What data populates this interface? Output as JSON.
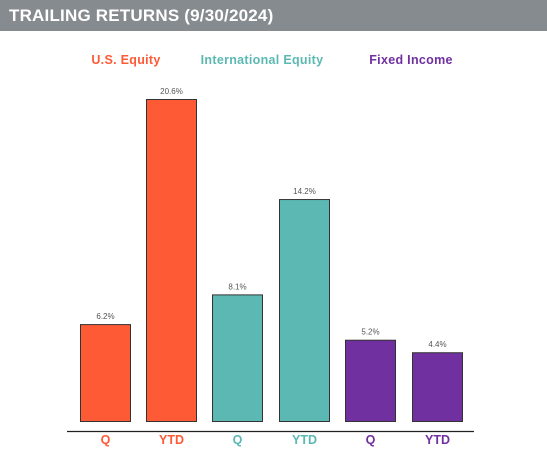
{
  "header": {
    "title": "TRAILING RETURNS (9/30/2024)"
  },
  "colors": {
    "header_bg": "#868b90",
    "us_equity": "#ff5a36",
    "international_equity": "#5bb8b2",
    "fixed_income": "#7030a0"
  },
  "chart_data": {
    "type": "bar",
    "title": "TRAILING RETURNS (9/30/2024)",
    "categories": [
      "Q",
      "YTD",
      "Q",
      "YTD",
      "Q",
      "YTD"
    ],
    "groups": [
      {
        "name": "U.S. Equity",
        "color": "#ff5a36",
        "categories": [
          "Q",
          "YTD"
        ],
        "values": [
          6.2,
          20.6
        ],
        "labels": [
          "6.2%",
          "20.6%"
        ]
      },
      {
        "name": "International Equity",
        "color": "#5bb8b2",
        "categories": [
          "Q",
          "YTD"
        ],
        "values": [
          8.1,
          14.2
        ],
        "labels": [
          "8.1%",
          "14.2%"
        ]
      },
      {
        "name": "Fixed Income",
        "color": "#7030a0",
        "categories": [
          "Q",
          "YTD"
        ],
        "values": [
          5.2,
          4.4
        ],
        "labels": [
          "5.2%",
          "4.4%"
        ]
      }
    ],
    "ylim": [
      0,
      20.6
    ],
    "grid": false,
    "legend": "top"
  }
}
